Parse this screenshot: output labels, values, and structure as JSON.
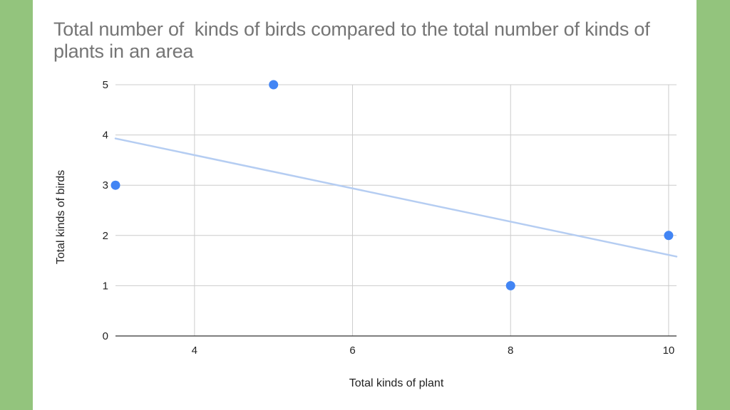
{
  "colors": {
    "background": "#93c47d",
    "panel": "#ffffff",
    "title": "#757575",
    "point": "#4285f4",
    "trendline": "#b5cdf2",
    "grid": "#cccccc",
    "axis": "#333333"
  },
  "chart_data": {
    "type": "scatter",
    "title": "Total number of  kinds of birds compared to the total number of kinds of plants in an area",
    "xlabel": "Total kinds of plant",
    "ylabel": "Total kinds of birds",
    "xlim": [
      3,
      10.1
    ],
    "ylim": [
      0,
      5
    ],
    "x_ticks": [
      4,
      6,
      8,
      10
    ],
    "y_ticks": [
      0,
      1,
      2,
      3,
      4,
      5
    ],
    "grid": true,
    "legend": "none",
    "series": [
      {
        "points": [
          {
            "x": 3,
            "y": 3
          },
          {
            "x": 5,
            "y": 5
          },
          {
            "x": 8,
            "y": 1
          },
          {
            "x": 10,
            "y": 2
          }
        ]
      }
    ],
    "trendline": {
      "type": "linear",
      "from": {
        "x": 3,
        "y": 3.93
      },
      "to": {
        "x": 10.1,
        "y": 1.58
      }
    }
  }
}
